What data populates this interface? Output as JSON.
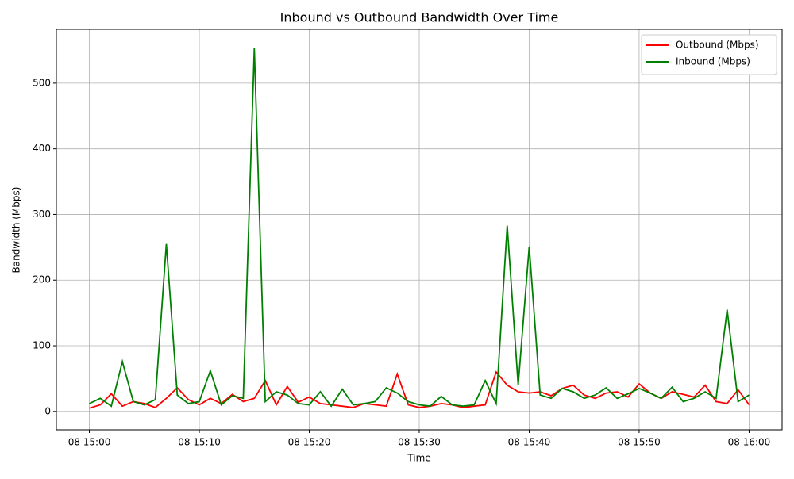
{
  "chart_data": {
    "type": "line",
    "title": "Inbound vs Outbound Bandwidth Over Time",
    "xlabel": "Time",
    "ylabel": "Bandwidth (Mbps)",
    "x": [
      "08 15:00",
      "08 15:01",
      "08 15:02",
      "08 15:03",
      "08 15:04",
      "08 15:05",
      "08 15:06",
      "08 15:07",
      "08 15:08",
      "08 15:09",
      "08 15:10",
      "08 15:11",
      "08 15:12",
      "08 15:13",
      "08 15:14",
      "08 15:15",
      "08 15:16",
      "08 15:17",
      "08 15:18",
      "08 15:19",
      "08 15:20",
      "08 15:21",
      "08 15:22",
      "08 15:23",
      "08 15:24",
      "08 15:25",
      "08 15:26",
      "08 15:27",
      "08 15:28",
      "08 15:29",
      "08 15:30",
      "08 15:31",
      "08 15:32",
      "08 15:33",
      "08 15:34",
      "08 15:35",
      "08 15:36",
      "08 15:37",
      "08 15:38",
      "08 15:39",
      "08 15:40",
      "08 15:41",
      "08 15:42",
      "08 15:43",
      "08 15:44",
      "08 15:45",
      "08 15:46",
      "08 15:47",
      "08 15:48",
      "08 15:49",
      "08 15:50",
      "08 15:51",
      "08 15:52",
      "08 15:53",
      "08 15:54",
      "08 15:55",
      "08 15:56",
      "08 15:57",
      "08 15:58",
      "08 15:59",
      "08 16:00"
    ],
    "series": [
      {
        "name": "Outbound (Mbps)",
        "color": "#ff0000",
        "values": [
          5,
          10,
          27,
          8,
          15,
          12,
          6,
          20,
          36,
          18,
          10,
          20,
          12,
          26,
          15,
          20,
          47,
          10,
          38,
          14,
          22,
          12,
          10,
          8,
          6,
          12,
          10,
          8,
          57,
          10,
          6,
          8,
          12,
          10,
          6,
          8,
          10,
          60,
          40,
          30,
          28,
          30,
          24,
          35,
          40,
          25,
          20,
          28,
          30,
          22,
          42,
          28,
          20,
          30,
          26,
          22,
          40,
          15,
          12,
          33,
          10
        ]
      },
      {
        "name": "Inbound (Mbps)",
        "color": "#008000",
        "values": [
          12,
          20,
          8,
          76,
          15,
          10,
          18,
          255,
          25,
          12,
          15,
          62,
          10,
          24,
          20,
          553,
          15,
          30,
          25,
          12,
          10,
          30,
          8,
          34,
          10,
          12,
          15,
          36,
          28,
          15,
          10,
          8,
          23,
          10,
          8,
          10,
          47,
          12,
          283,
          40,
          251,
          25,
          20,
          35,
          30,
          20,
          25,
          36,
          20,
          27,
          35,
          28,
          20,
          37,
          15,
          20,
          30,
          20,
          155,
          15,
          25
        ]
      }
    ],
    "xlim": [
      "08 15:00",
      "08 16:00"
    ],
    "xticks": [
      "08 15:00",
      "08 15:10",
      "08 15:20",
      "08 15:30",
      "08 15:40",
      "08 15:50",
      "08 16:00"
    ],
    "ylim": [
      -28,
      582
    ],
    "yticks": [
      0,
      100,
      200,
      300,
      400,
      500
    ],
    "grid": true,
    "legend": "upper right"
  }
}
